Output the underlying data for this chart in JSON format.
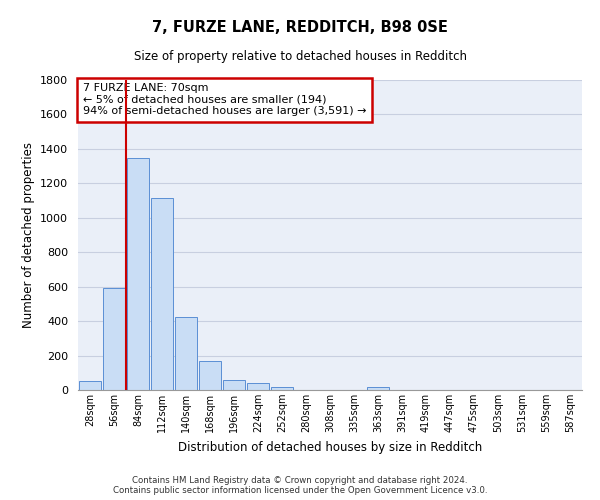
{
  "title": "7, FURZE LANE, REDDITCH, B98 0SE",
  "subtitle": "Size of property relative to detached houses in Redditch",
  "xlabel": "Distribution of detached houses by size in Redditch",
  "ylabel": "Number of detached properties",
  "bar_color": "#c9ddf5",
  "bar_edge_color": "#5b8fd4",
  "grid_color": "#c8cfe0",
  "background_color": "#eaeff8",
  "categories": [
    "28sqm",
    "56sqm",
    "84sqm",
    "112sqm",
    "140sqm",
    "168sqm",
    "196sqm",
    "224sqm",
    "252sqm",
    "280sqm",
    "308sqm",
    "335sqm",
    "363sqm",
    "391sqm",
    "419sqm",
    "447sqm",
    "475sqm",
    "503sqm",
    "531sqm",
    "559sqm",
    "587sqm"
  ],
  "values": [
    50,
    595,
    1345,
    1115,
    425,
    170,
    60,
    38,
    18,
    0,
    0,
    0,
    20,
    0,
    0,
    0,
    0,
    0,
    0,
    0,
    0
  ],
  "ylim": [
    0,
    1800
  ],
  "yticks": [
    0,
    200,
    400,
    600,
    800,
    1000,
    1200,
    1400,
    1600,
    1800
  ],
  "property_line_x": 1.5,
  "annotation_title": "7 FURZE LANE: 70sqm",
  "annotation_line1": "← 5% of detached houses are smaller (194)",
  "annotation_line2": "94% of semi-detached houses are larger (3,591) →",
  "annotation_box_color": "#ffffff",
  "annotation_border_color": "#cc0000",
  "vline_color": "#cc0000",
  "footer1": "Contains HM Land Registry data © Crown copyright and database right 2024.",
  "footer2": "Contains public sector information licensed under the Open Government Licence v3.0."
}
